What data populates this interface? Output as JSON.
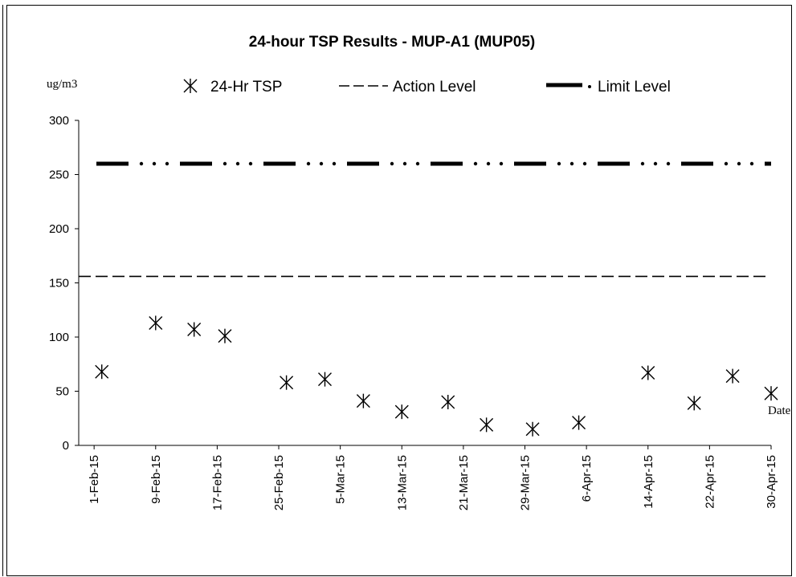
{
  "chart_data": {
    "type": "scatter",
    "title": "24-hour TSP Results - MUP-A1 (MUP05)",
    "ylabel": "ug/m3",
    "xlabel": "Date",
    "ylim": [
      0,
      300
    ],
    "yticks": [
      0,
      50,
      100,
      150,
      200,
      250,
      300
    ],
    "xlim": [
      "2015-01-30",
      "2015-04-30"
    ],
    "xtick_labels": [
      "1-Feb-15",
      "9-Feb-15",
      "17-Feb-15",
      "25-Feb-15",
      "5-Mar-15",
      "13-Mar-15",
      "21-Mar-15",
      "29-Mar-15",
      "6-Apr-15",
      "14-Apr-15",
      "22-Apr-15",
      "30-Apr-15"
    ],
    "xtick_dates": [
      "2015-02-01",
      "2015-02-09",
      "2015-02-17",
      "2015-02-25",
      "2015-03-05",
      "2015-03-13",
      "2015-03-21",
      "2015-03-29",
      "2015-04-06",
      "2015-04-14",
      "2015-04-22",
      "2015-04-30"
    ],
    "legend": {
      "placement": "top",
      "entries": [
        "24-Hr TSP",
        "Action Level",
        "Limit Level"
      ]
    },
    "series": [
      {
        "name": "24-Hr TSP",
        "marker": "asterisk",
        "color": "#000000",
        "x": [
          "2015-02-02",
          "2015-02-09",
          "2015-02-14",
          "2015-02-18",
          "2015-02-26",
          "2015-03-03",
          "2015-03-08",
          "2015-03-13",
          "2015-03-19",
          "2015-03-24",
          "2015-03-30",
          "2015-04-05",
          "2015-04-14",
          "2015-04-20",
          "2015-04-25",
          "2015-04-30"
        ],
        "y": [
          68,
          113,
          107,
          101,
          58,
          61,
          41,
          31,
          40,
          19,
          15,
          21,
          67,
          39,
          64,
          48
        ]
      },
      {
        "name": "Action Level",
        "style": "dashed",
        "color": "#000000",
        "x": [
          "2015-01-30",
          "2015-04-30"
        ],
        "y": [
          156,
          156
        ]
      },
      {
        "name": "Limit Level",
        "style": "dash-dot-dot-thick",
        "color": "#000000",
        "x": [
          "2015-01-30",
          "2015-04-30"
        ],
        "y": [
          260,
          260
        ]
      }
    ]
  }
}
